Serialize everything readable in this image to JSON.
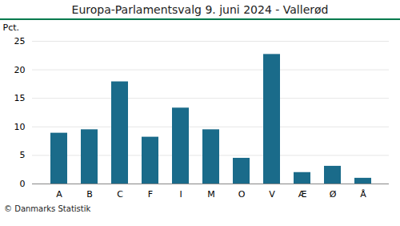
{
  "chart_data": {
    "type": "bar",
    "title": "Europa-Parlamentsvalg 9. juni 2024 - Vallerød",
    "categories": [
      "A",
      "B",
      "C",
      "F",
      "I",
      "M",
      "O",
      "V",
      "Æ",
      "Ø",
      "Å"
    ],
    "values": [
      8.9,
      9.5,
      17.9,
      8.2,
      13.3,
      9.5,
      4.5,
      22.7,
      2.0,
      3.1,
      1.0
    ],
    "color": "#1a6b8a",
    "ylabel": "Pct.",
    "caption": "© Danmarks Statistik",
    "ylim": [
      0,
      25
    ],
    "yticks": [
      0,
      5,
      10,
      15,
      20,
      25
    ],
    "grid": true
  }
}
